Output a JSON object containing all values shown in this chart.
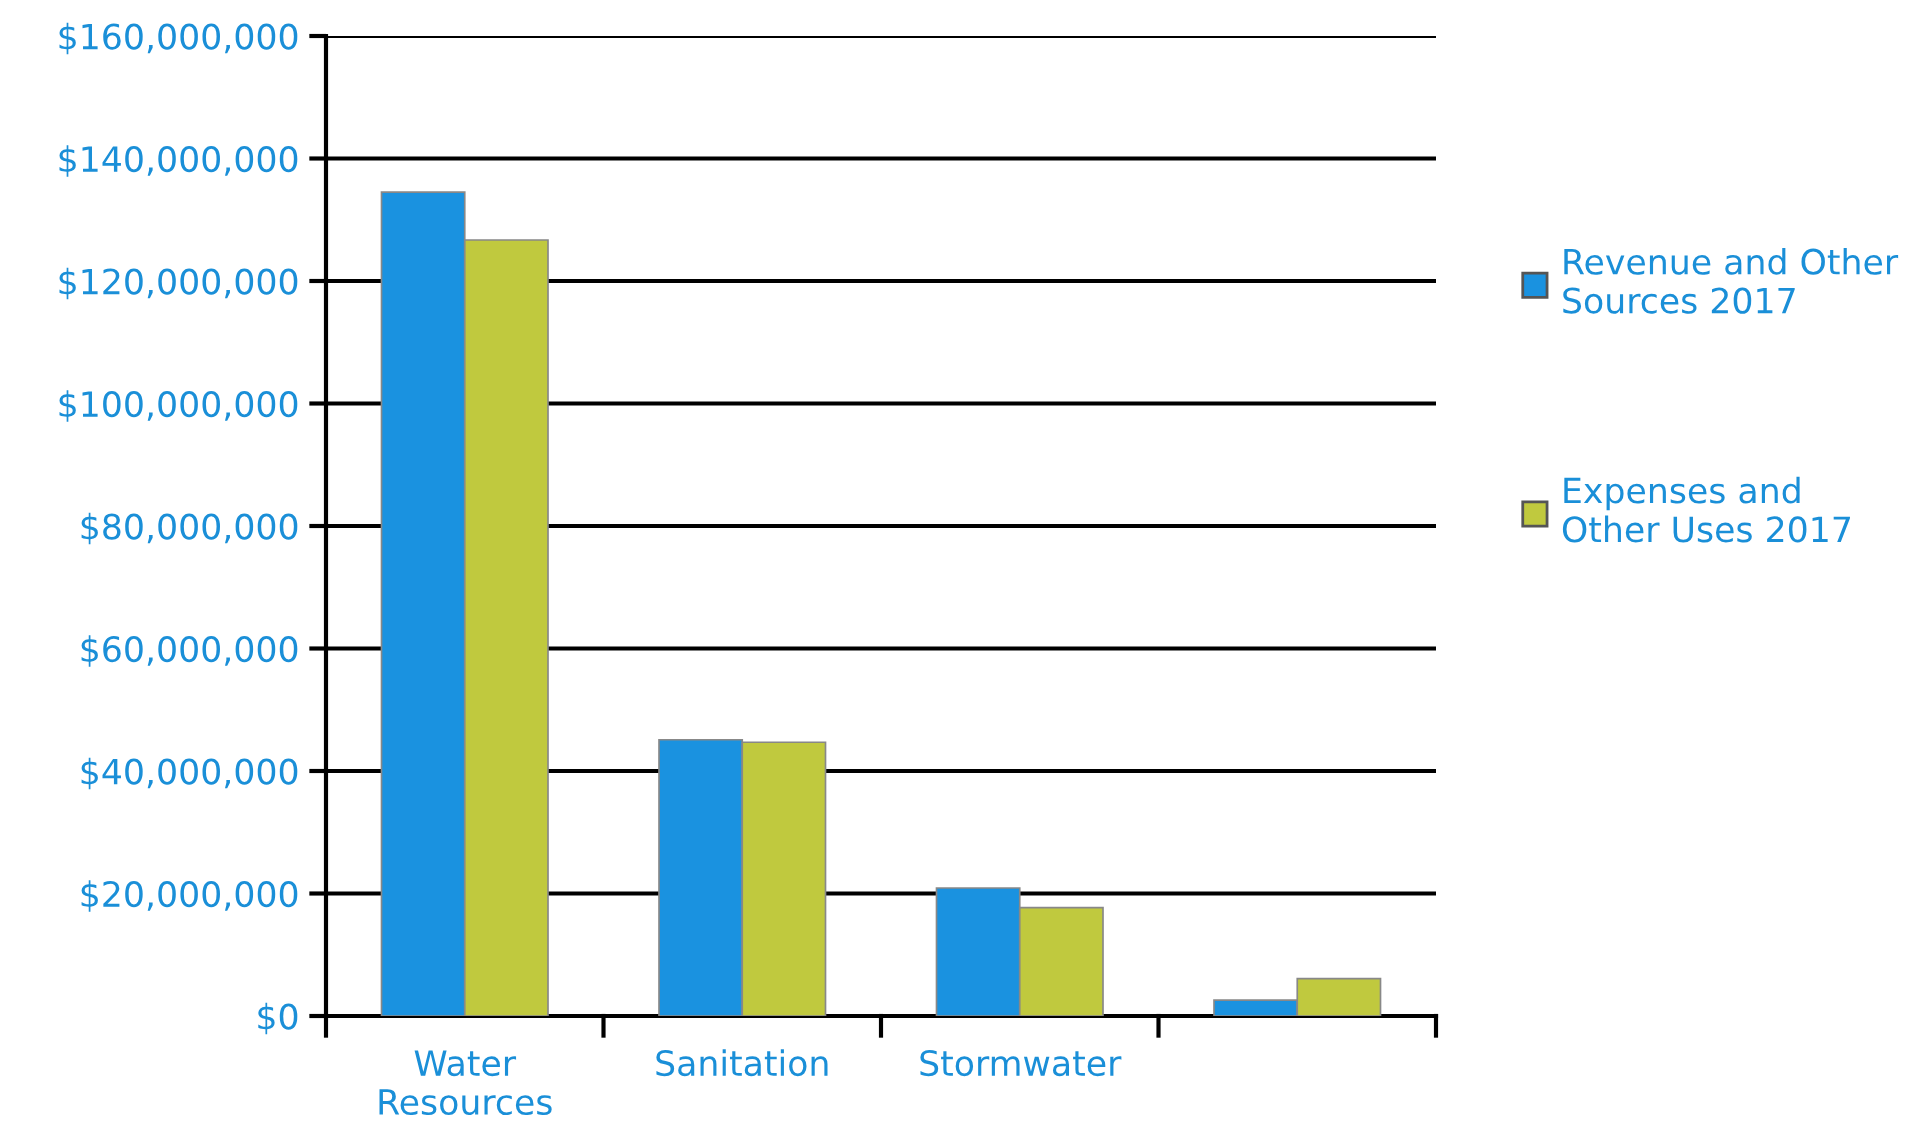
{
  "chart_data": {
    "type": "bar",
    "categories": [
      "Water\nResources",
      "Sanitation",
      "Stormwater",
      null
    ],
    "series": [
      {
        "name": "Revenue and Other\nSources 2017",
        "color": "#1a92e0",
        "values": [
          134500000,
          45100000,
          20900000,
          2600000
        ]
      },
      {
        "name": "Expenses and\nOther Uses 2017",
        "color": "#c0c93e",
        "values": [
          126700000,
          44700000,
          17700000,
          6100000
        ]
      }
    ],
    "ylim": [
      0,
      160000000
    ],
    "yticks": [
      {
        "value": 0,
        "label": "$0"
      },
      {
        "value": 20000000,
        "label": "$20,000,000"
      },
      {
        "value": 40000000,
        "label": "$40,000,000"
      },
      {
        "value": 60000000,
        "label": "$60,000,000"
      },
      {
        "value": 80000000,
        "label": "$80,000,000"
      },
      {
        "value": 100000000,
        "label": "$100,000,000"
      },
      {
        "value": 120000000,
        "label": "$120,000,000"
      },
      {
        "value": 140000000,
        "label": "$140,000,000"
      },
      {
        "value": 160000000,
        "label": "$160,000,000"
      }
    ],
    "grid": "y",
    "legend": "right"
  }
}
